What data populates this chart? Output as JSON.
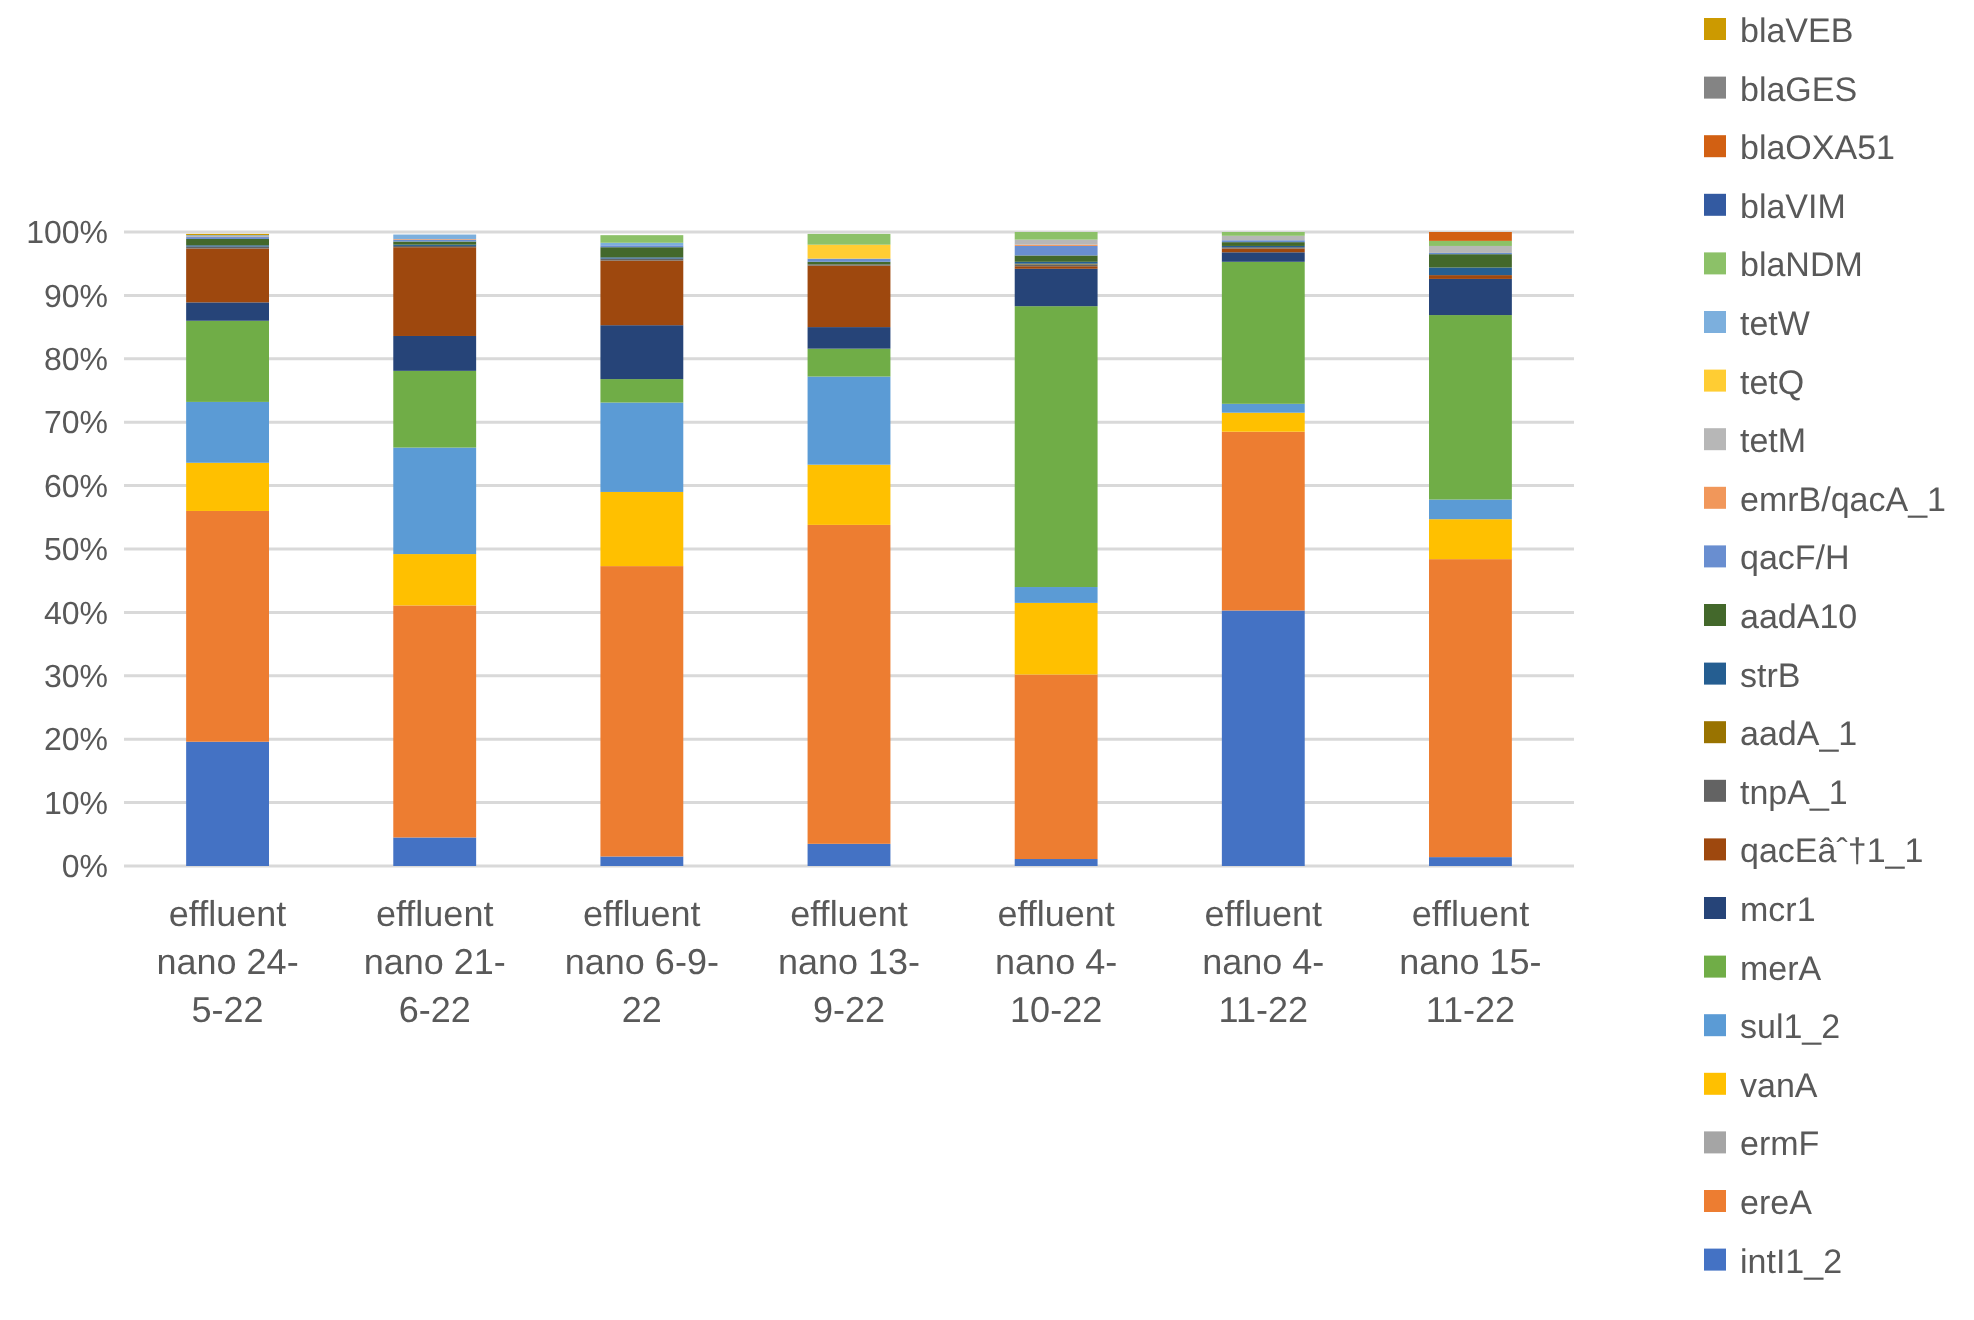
{
  "chart_data": {
    "type": "bar",
    "stacked": true,
    "grid": "y",
    "legend": "right",
    "categories": [
      "effluent nano 24-5-22",
      "effluent nano 21-6-22",
      "effluent nano 6-9-22",
      "effluent nano 13-9-22",
      "effluent nano 4-10-22",
      "effluent nano 4-11-22",
      "effluent nano 15-11-22"
    ],
    "ylim": [
      0,
      100
    ],
    "yticks": [
      {
        "value": 0,
        "label": "0%"
      },
      {
        "value": 10,
        "label": "10%"
      },
      {
        "value": 20,
        "label": "20%"
      },
      {
        "value": 30,
        "label": "30%"
      },
      {
        "value": 40,
        "label": "40%"
      },
      {
        "value": 50,
        "label": "50%"
      },
      {
        "value": 60,
        "label": "60%"
      },
      {
        "value": 70,
        "label": "70%"
      },
      {
        "value": 80,
        "label": "80%"
      },
      {
        "value": 90,
        "label": "90%"
      },
      {
        "value": 100,
        "label": "100%"
      }
    ],
    "series": [
      {
        "name": "intI1_2",
        "color": "#4472c4",
        "values": [
          19.6,
          4.5,
          1.5,
          3.5,
          1.1,
          40.3,
          1.4
        ]
      },
      {
        "name": "ereA",
        "color": "#ed7d31",
        "values": [
          36.4,
          36.6,
          45.8,
          50.3,
          29.1,
          28.2,
          47.0
        ]
      },
      {
        "name": "ermF",
        "color": "#a5a5a5",
        "values": [
          0,
          0,
          0,
          0,
          0,
          0,
          0
        ]
      },
      {
        "name": "vanA",
        "color": "#ffc000",
        "values": [
          7.6,
          8.1,
          11.7,
          9.5,
          11.3,
          3.0,
          6.3
        ]
      },
      {
        "name": "sul1_2",
        "color": "#5b9bd5",
        "values": [
          9.6,
          16.8,
          14.1,
          13.9,
          2.5,
          1.4,
          3.1
        ]
      },
      {
        "name": "merA",
        "color": "#70ad47",
        "values": [
          12.8,
          12.1,
          3.7,
          4.4,
          44.3,
          22.4,
          29.1
        ]
      },
      {
        "name": "mcr1",
        "color": "#264478",
        "values": [
          2.9,
          5.5,
          8.5,
          3.4,
          5.9,
          1.5,
          5.7
        ]
      },
      {
        "name": "qacEâˆ†1_1",
        "color": "#9e480e",
        "values": [
          8.5,
          14.0,
          10.2,
          9.7,
          0.4,
          0.6,
          0.6
        ]
      },
      {
        "name": "tnpA_1",
        "color": "#636363",
        "values": [
          0.3,
          0.2,
          0.3,
          0.2,
          0.3,
          0.2,
          0
        ]
      },
      {
        "name": "aadA_1",
        "color": "#997300",
        "values": [
          0,
          0,
          0,
          0,
          0.1,
          0,
          0
        ]
      },
      {
        "name": "strB",
        "color": "#255e91",
        "values": [
          0.2,
          0.2,
          0.2,
          0,
          0.3,
          0.2,
          1.2
        ]
      },
      {
        "name": "aadA10",
        "color": "#43682b",
        "values": [
          1.0,
          0.5,
          1.6,
          0.4,
          1.0,
          0.6,
          2.1
        ]
      },
      {
        "name": "qacF/H",
        "color": "#698ed0",
        "values": [
          0.3,
          0.3,
          0.3,
          0.5,
          1.5,
          0.3,
          0.2
        ]
      },
      {
        "name": "emrB/qacA_1",
        "color": "#f1975a",
        "values": [
          0.1,
          0.1,
          0,
          0,
          0.2,
          0,
          0
        ]
      },
      {
        "name": "tetM",
        "color": "#b7b7b7",
        "values": [
          null,
          null,
          null,
          null,
          0.8,
          0.7,
          1.1
        ]
      },
      {
        "name": "tetQ",
        "color": "#ffcd33",
        "values": [
          0,
          0,
          0,
          2.2,
          0,
          0,
          0
        ]
      },
      {
        "name": "tetW",
        "color": "#7cafdd",
        "values": [
          0.2,
          0.7,
          0.4,
          0,
          0,
          0,
          0
        ]
      },
      {
        "name": "blaNDM",
        "color": "#8cc168",
        "values": [
          0,
          0,
          1.2,
          1.7,
          1.2,
          0.6,
          0.8
        ]
      },
      {
        "name": "blaVIM",
        "color": "#335aa1",
        "values": [
          0,
          0,
          0,
          0,
          0,
          0,
          0
        ]
      },
      {
        "name": "blaOXA51",
        "color": "#d26012",
        "values": [
          0,
          0,
          0,
          0,
          0,
          0,
          1.4
        ]
      },
      {
        "name": "blaGES",
        "color": "#848484",
        "values": [
          0,
          0,
          0,
          0,
          0,
          0,
          0
        ]
      },
      {
        "name": "blaVEB",
        "color": "#cc9a00",
        "values": [
          0.2,
          0,
          0,
          0,
          0,
          0,
          0
        ]
      }
    ]
  }
}
